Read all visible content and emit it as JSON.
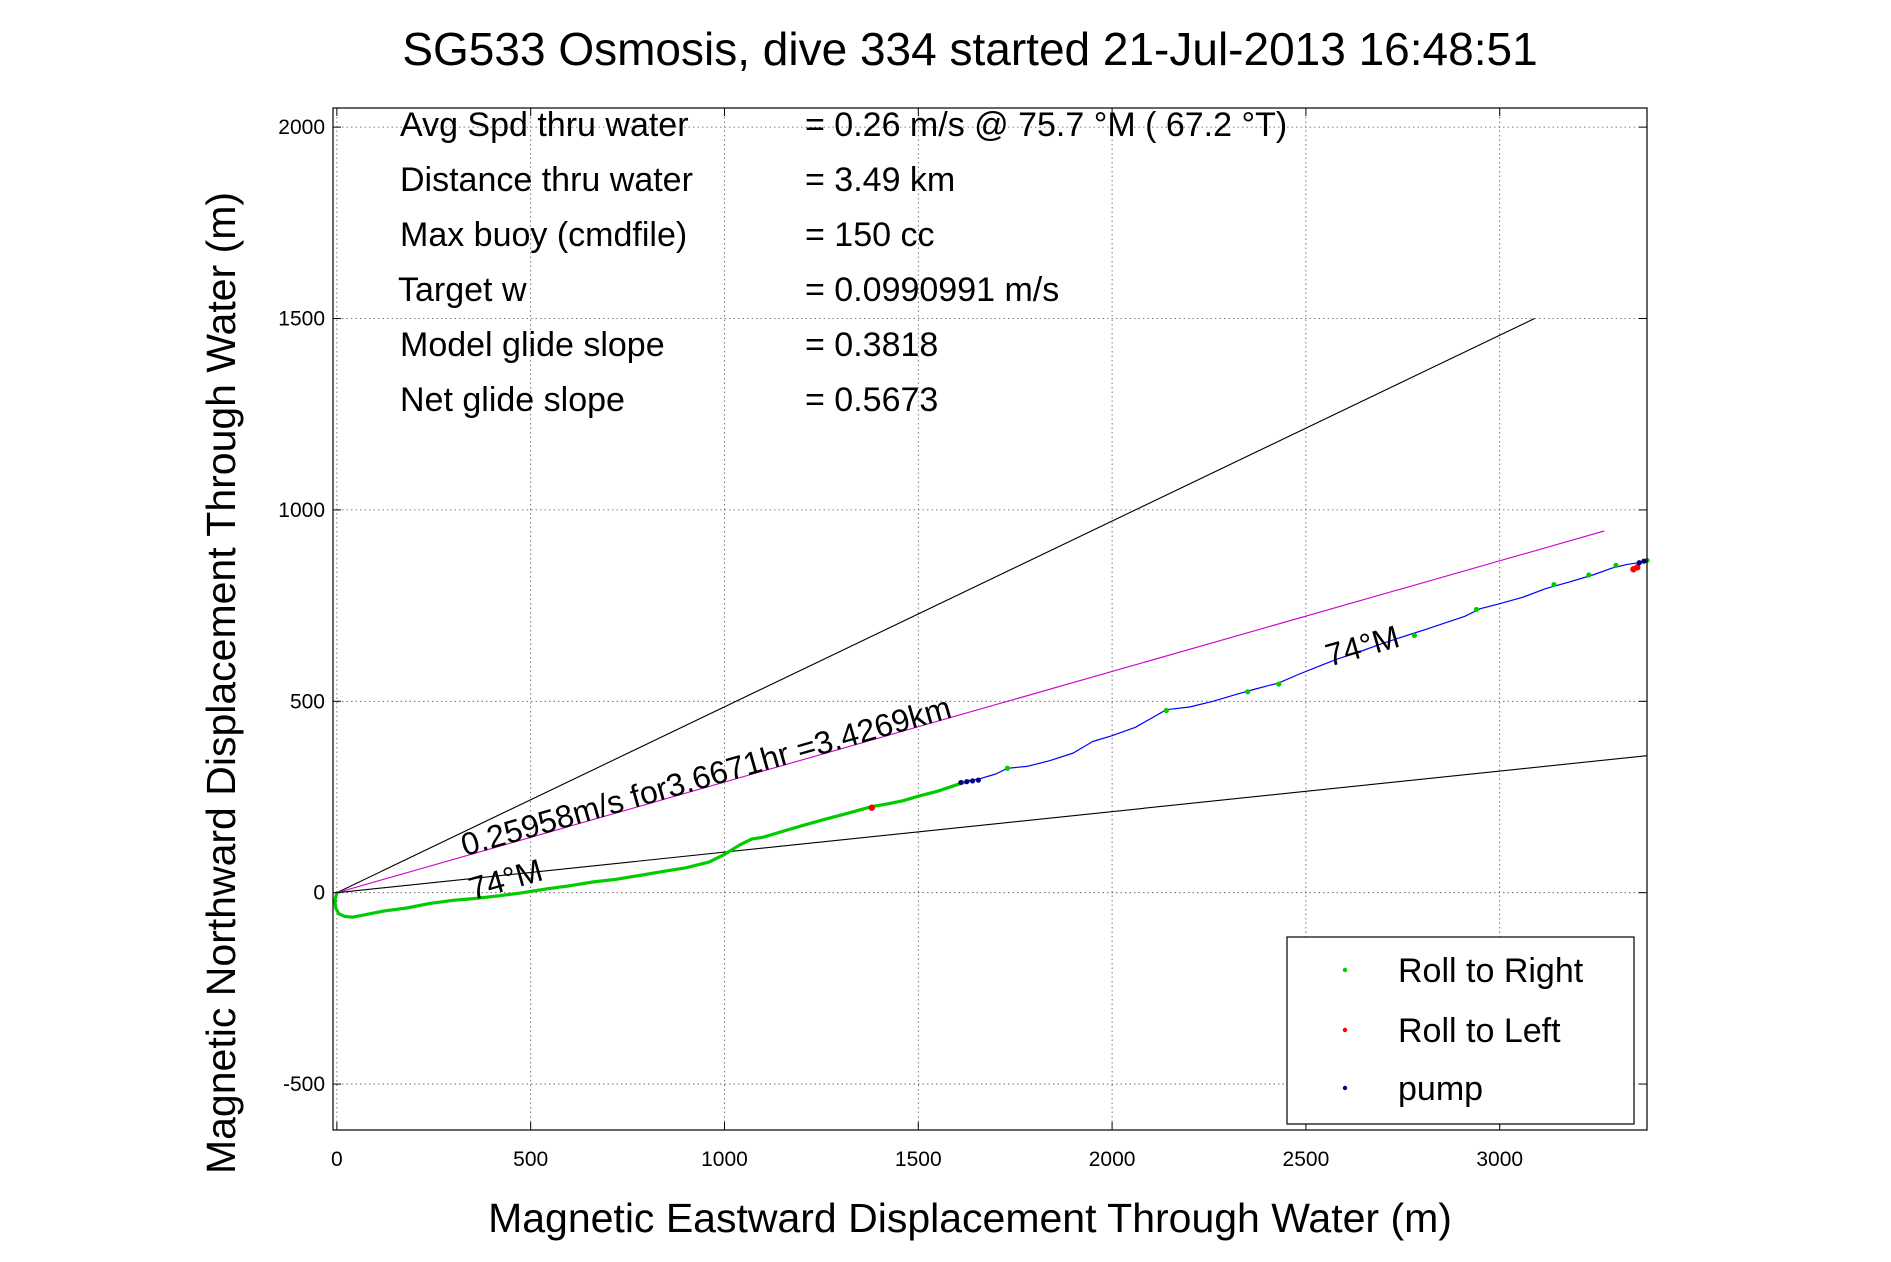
{
  "chart_data": {
    "type": "line",
    "title": "SG533 Osmosis, dive 334 started 21-Jul-2013 16:48:51",
    "xlabel": "Magnetic Eastward Displacement Through Water (m)",
    "ylabel": "Magnetic Northward Displacement Through Water (m)",
    "xlim": [
      -10,
      3380
    ],
    "ylim": [
      -620,
      2050
    ],
    "x_ticks": [
      0,
      500,
      1000,
      1500,
      2000,
      2500,
      3000
    ],
    "y_ticks": [
      -500,
      0,
      500,
      1000,
      1500,
      2000
    ],
    "x_tick_labels": [
      "0",
      "500",
      "1000",
      "1500",
      "2000",
      "2500",
      "3000"
    ],
    "y_tick_labels": [
      "-500",
      "0",
      "500",
      "1000",
      "1500",
      "2000"
    ],
    "grid": true,
    "legend_position": "bottom-right",
    "legend": [
      {
        "label": "Roll to Right",
        "color": "#00cc00"
      },
      {
        "label": "Roll to Left",
        "color": "#ff0000"
      },
      {
        "label": "pump",
        "color": "#000080"
      }
    ],
    "info_lines": [
      {
        "label": "Avg Spd thru water",
        "value": "=  0.26 m/s @  75.7 °M ( 67.2 °T)"
      },
      {
        "label": "Distance thru water",
        "value": "=  3.49 km"
      },
      {
        "label": "Max buoy (cmdfile)",
        "value": "= 150 cc"
      },
      {
        "label": "Target w",
        "value": "= 0.0990991 m/s"
      },
      {
        "label": "Model glide slope",
        "value": "= 0.3818"
      },
      {
        "label": "Net glide slope",
        "value": "= 0.5673"
      }
    ],
    "annotations": {
      "speed_label": "0.25958m/s for3.6671hr =3.4269km",
      "heading_label_start": "74°M",
      "heading_label_end": "74°M"
    },
    "reference_lines": [
      {
        "x": [
          0,
          3090
        ],
        "y": [
          0,
          1500
        ],
        "color": "#000000"
      },
      {
        "x": [
          0,
          3380
        ],
        "y": [
          0,
          358
        ],
        "color": "#000000"
      },
      {
        "x": [
          0,
          3270
        ],
        "y": [
          0,
          945
        ],
        "color": "#cc00cc"
      }
    ],
    "series": [
      {
        "name": "Roll to Right",
        "color": "#00cc00",
        "x": [
          0,
          -5,
          -3,
          5,
          20,
          40,
          70,
          120,
          180,
          240,
          300,
          360,
          420,
          480,
          540,
          600,
          660,
          720,
          780,
          840,
          900,
          960,
          1000,
          1040,
          1070,
          1100,
          1150,
          1200,
          1260,
          1320,
          1380,
          1420,
          1460,
          1500,
          1550,
          1600,
          1630
        ],
        "y": [
          0,
          -20,
          -40,
          -55,
          -62,
          -64,
          -58,
          -48,
          -40,
          -28,
          -20,
          -15,
          -8,
          0,
          10,
          18,
          28,
          35,
          45,
          55,
          65,
          80,
          100,
          125,
          140,
          145,
          160,
          175,
          192,
          208,
          225,
          232,
          240,
          252,
          265,
          282,
          292
        ]
      },
      {
        "name": "track",
        "color": "#0000ff",
        "x": [
          1630,
          1660,
          1700,
          1730,
          1780,
          1840,
          1900,
          1950,
          2000,
          2060,
          2100,
          2140,
          2200,
          2260,
          2320,
          2370,
          2430,
          2480,
          2530,
          2580,
          2640,
          2700,
          2760,
          2810,
          2860,
          2910,
          2950,
          3000,
          3060,
          3120,
          3180,
          3240,
          3290,
          3330,
          3360,
          3380
        ],
        "y": [
          292,
          298,
          310,
          325,
          330,
          345,
          365,
          395,
          410,
          432,
          455,
          478,
          485,
          500,
          518,
          532,
          548,
          570,
          590,
          610,
          630,
          652,
          672,
          688,
          705,
          722,
          742,
          755,
          772,
          795,
          812,
          830,
          848,
          858,
          862,
          866
        ]
      }
    ],
    "markers": {
      "roll_right": {
        "x": [
          1730,
          2140,
          2350,
          2430,
          2780,
          2940,
          3140,
          3230,
          3300,
          3380
        ],
        "y": [
          325,
          476,
          525,
          545,
          672,
          740,
          805,
          830,
          855,
          868
        ]
      },
      "roll_left": {
        "x": [
          1380,
          3345,
          3355
        ],
        "y": [
          222,
          845,
          850
        ]
      },
      "pump": {
        "x": [
          1610,
          1625,
          1640,
          1655,
          3360,
          3372
        ],
        "y": [
          288,
          290,
          292,
          294,
          862,
          866
        ]
      }
    }
  }
}
